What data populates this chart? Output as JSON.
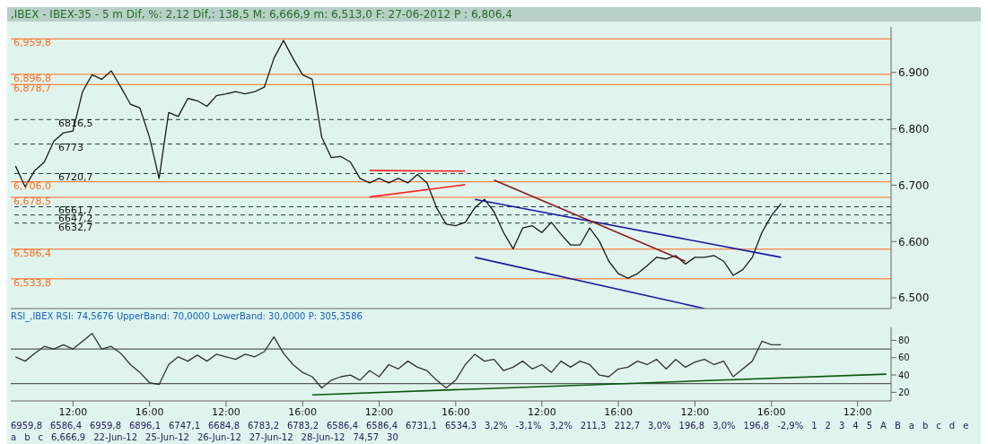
{
  "chart_data": [
    {
      "type": "line",
      "title": ",IBEX - IBEX-35 -  5 m Dif, %: 2,12 Dif,: 138,5 M: 6,666,9 m: 6,513,0 F: 27-06-2012 P : 6,806,4",
      "categories": [
        null,
        null,
        null,
        null,
        null,
        null,
        null,
        null,
        null,
        null,
        null,
        null,
        null,
        null,
        null,
        null,
        null,
        null,
        null,
        null,
        null,
        null,
        null,
        null,
        null,
        null,
        null,
        null,
        null,
        null,
        null,
        null,
        null,
        null,
        null,
        null,
        null,
        null,
        null,
        null,
        null,
        null,
        null,
        null,
        null,
        null,
        null,
        null,
        null,
        null,
        null,
        null,
        null,
        null,
        null,
        null,
        null,
        null,
        null,
        null,
        null,
        null,
        null,
        null,
        null,
        null,
        null,
        null,
        null,
        null,
        null,
        null,
        null,
        null,
        null,
        null,
        null,
        null,
        null,
        null,
        null,
        null,
        null,
        null,
        null,
        null,
        null,
        null,
        null,
        null,
        null,
        null
      ],
      "series": [
        {
          "color": "#1a1a1a",
          "values": [
            6734,
            6697,
            6726,
            6741,
            6778,
            6793,
            6796,
            6866,
            6896,
            6888,
            6903,
            6874,
            6844,
            6837,
            6785,
            6712,
            6829,
            6822,
            6854,
            6850,
            6840,
            6859,
            6862,
            6866,
            6862,
            6866,
            6874,
            6925,
            6957,
            6925,
            6896,
            6888,
            6785,
            6749,
            6751,
            6741,
            6712,
            6704,
            6712,
            6704,
            6712,
            6704,
            6719,
            6704,
            6660,
            6631,
            6628,
            6634,
            6660,
            6675,
            6653,
            6616,
            6587,
            6624,
            6628,
            6616,
            6634,
            6613,
            6594,
            6594,
            6624,
            6601,
            6565,
            6543,
            6535,
            6543,
            6557,
            6572,
            6569,
            6575,
            6560,
            6572,
            6572,
            6575,
            6565,
            6540,
            6550,
            6572,
            6616,
            6646,
            6667,
            null,
            null,
            null,
            null,
            null,
            null,
            null,
            null,
            null,
            null,
            null
          ]
        },
        {
          "type": "line",
          "color": "#1a1aa0",
          "values": [
            null,
            null,
            null,
            null,
            null,
            null,
            null,
            null,
            null,
            null,
            null,
            null,
            null,
            null,
            null,
            null,
            null,
            null,
            null,
            null,
            null,
            null,
            null,
            null,
            null,
            null,
            null,
            null,
            null,
            null,
            null,
            null,
            null,
            null,
            null,
            null,
            null,
            null,
            null,
            null,
            null,
            null,
            null,
            null,
            null,
            null,
            null,
            null,
            6675,
            null,
            null,
            null,
            null,
            null,
            null,
            null,
            null,
            null,
            null,
            null,
            null,
            null,
            null,
            null,
            null,
            null,
            null,
            null,
            null,
            null,
            null,
            null,
            null,
            null,
            null,
            null,
            null,
            null,
            null,
            null,
            6572,
            null,
            null,
            null,
            null,
            null,
            null,
            null,
            null,
            null,
            null,
            null
          ]
        },
        {
          "type": "line",
          "color": "#1a1aa0",
          "values": [
            null,
            null,
            null,
            null,
            null,
            null,
            null,
            null,
            null,
            null,
            null,
            null,
            null,
            null,
            null,
            null,
            null,
            null,
            null,
            null,
            null,
            null,
            null,
            null,
            null,
            null,
            null,
            null,
            null,
            null,
            null,
            null,
            null,
            null,
            null,
            null,
            null,
            null,
            null,
            null,
            null,
            null,
            null,
            null,
            null,
            null,
            null,
            null,
            6572,
            null,
            null,
            null,
            null,
            null,
            null,
            null,
            null,
            null,
            null,
            null,
            null,
            null,
            null,
            null,
            null,
            null,
            null,
            null,
            null,
            null,
            null,
            null,
            6481,
            null,
            null,
            null,
            null,
            null,
            null,
            null,
            null,
            null,
            null,
            null,
            null,
            null,
            null,
            null,
            null,
            null,
            null,
            null
          ]
        },
        {
          "type": "line",
          "color": "#8b1a1a",
          "values": [
            null,
            null,
            null,
            null,
            null,
            null,
            null,
            null,
            null,
            null,
            null,
            null,
            null,
            null,
            null,
            null,
            null,
            null,
            null,
            null,
            null,
            null,
            null,
            null,
            null,
            null,
            null,
            null,
            null,
            null,
            null,
            null,
            null,
            null,
            null,
            null,
            null,
            null,
            null,
            null,
            null,
            null,
            null,
            null,
            null,
            null,
            null,
            null,
            null,
            null,
            6709,
            null,
            null,
            null,
            null,
            null,
            null,
            null,
            null,
            null,
            null,
            null,
            null,
            null,
            null,
            null,
            null,
            null,
            null,
            null,
            6565,
            null,
            null,
            null,
            null,
            null,
            null,
            null,
            null,
            null,
            null,
            null,
            null,
            null,
            null,
            null,
            null,
            null,
            null,
            null,
            null,
            null
          ]
        },
        {
          "type": "line",
          "color": "#ff2020",
          "values": [
            null,
            null,
            null,
            null,
            null,
            null,
            null,
            null,
            null,
            null,
            null,
            null,
            null,
            null,
            null,
            null,
            null,
            null,
            null,
            null,
            null,
            null,
            null,
            null,
            null,
            null,
            null,
            null,
            null,
            null,
            null,
            null,
            null,
            null,
            null,
            null,
            null,
            6726,
            null,
            null,
            null,
            null,
            null,
            null,
            null,
            null,
            null,
            6725,
            null,
            null,
            null,
            null,
            null,
            null,
            null,
            null,
            null,
            null,
            null,
            null,
            null,
            null,
            null,
            null,
            null,
            null,
            null,
            null,
            null,
            null,
            null,
            null,
            null,
            null,
            null,
            null,
            null,
            null,
            null,
            null,
            null,
            null,
            null,
            null,
            null,
            null,
            null,
            null,
            null,
            null,
            null,
            null
          ]
        },
        {
          "type": "line",
          "color": "#ff2020",
          "values": [
            null,
            null,
            null,
            null,
            null,
            null,
            null,
            null,
            null,
            null,
            null,
            null,
            null,
            null,
            null,
            null,
            null,
            null,
            null,
            null,
            null,
            null,
            null,
            null,
            null,
            null,
            null,
            null,
            null,
            null,
            null,
            null,
            null,
            null,
            null,
            null,
            null,
            6679,
            null,
            null,
            null,
            null,
            null,
            null,
            null,
            null,
            null,
            6701,
            null,
            null,
            null,
            null,
            null,
            null,
            null,
            null,
            null,
            null,
            null,
            null,
            null,
            null,
            null,
            null,
            null,
            null,
            null,
            null,
            null,
            null,
            null,
            null,
            null,
            null,
            null,
            null,
            null,
            null,
            null,
            null,
            null,
            null,
            null,
            null,
            null,
            null,
            null,
            null,
            null,
            null,
            null,
            null
          ]
        }
      ],
      "ylim": [
        6481,
        6981
      ],
      "yticks": [
        {
          "value": 6500,
          "label": "6.500"
        },
        {
          "value": 6600,
          "label": "6.600"
        },
        {
          "value": 6700,
          "label": "6.700"
        },
        {
          "value": 6800,
          "label": "6.800"
        },
        {
          "value": 6900,
          "label": "6.900"
        }
      ],
      "tick_labels": "y",
      "marker": "none",
      "legend": false,
      "grid": false,
      "ref_lines": [
        {
          "axis": "y",
          "value": 6959.8,
          "label": "6,959,8",
          "color": "#ff6a1a"
        },
        {
          "axis": "y",
          "value": 6896.8,
          "label": "6,896,8",
          "color": "#ff6a1a"
        },
        {
          "axis": "y",
          "value": 6878.7,
          "label": "6,878,7",
          "color": "#ff6a1a"
        },
        {
          "axis": "y",
          "value": 6706,
          "label": "6,706,0",
          "color": "#ff6a1a"
        },
        {
          "axis": "y",
          "value": 6678.5,
          "label": "6,678,5",
          "color": "#ff6a1a"
        },
        {
          "axis": "y",
          "value": 6586.4,
          "label": "6,586,4",
          "color": "#ff6a1a"
        },
        {
          "axis": "y",
          "value": 6533.8,
          "label": "6,533,8",
          "color": "#ff6a1a"
        },
        {
          "axis": "y",
          "value": 6816.5,
          "label": "6816,5",
          "color": "#1a4040",
          "line_style": "dashed"
        },
        {
          "axis": "y",
          "value": 6773,
          "label": "6773",
          "color": "#1a4040",
          "line_style": "dashed"
        },
        {
          "axis": "y",
          "value": 6720.7,
          "label": "6720,7",
          "color": "#1a4040",
          "line_style": "dashed"
        },
        {
          "axis": "y",
          "value": 6661.7,
          "label": "6661,7",
          "color": "#1a4040",
          "line_style": "dashed"
        },
        {
          "axis": "y",
          "value": 6647.2,
          "label": "6647,2",
          "color": "#1a4040",
          "line_style": "dashed"
        },
        {
          "axis": "y",
          "value": 6632.7,
          "label": "6632,7",
          "color": "#1a4040",
          "line_style": "dashed"
        }
      ],
      "annotations": [
        "6959,8",
        "6586,4",
        "6959,8",
        "6896,1",
        "6747,1",
        "6684,8",
        "6783,2",
        "6783,2",
        "6586,4",
        "6586,4",
        "6731,1",
        "6534,3",
        "3,2%",
        "-3,1%",
        "3,2%",
        "211,3",
        "212,7",
        "3,0%",
        "196,8",
        "3,0%",
        "196,8",
        "-2,9%",
        "1",
        "2",
        "3",
        "4",
        "5",
        "A",
        "B",
        "a",
        "b",
        "c",
        "d",
        "e",
        "a",
        "b",
        "c",
        "6,666,9"
      ]
    },
    {
      "type": "line",
      "title": "RSI_,IBEX RSI: 74,5676 UpperBand: 70,0000 LowerBand: 30,0000 P: 305,3586",
      "categories": [
        null,
        null,
        null,
        null,
        null,
        null,
        "12:00",
        null,
        null,
        null,
        null,
        null,
        null,
        null,
        "16:00",
        null,
        null,
        null,
        null,
        null,
        null,
        null,
        "12:00",
        null,
        null,
        null,
        null,
        null,
        null,
        null,
        "16:00",
        null,
        null,
        null,
        null,
        null,
        null,
        null,
        "12:00",
        null,
        null,
        null,
        null,
        null,
        null,
        null,
        "16:00",
        null,
        null,
        null,
        null,
        null,
        null,
        null,
        null,
        "12:00",
        null,
        null,
        null,
        null,
        null,
        null,
        null,
        "16:00",
        null,
        null,
        null,
        null,
        null,
        null,
        null,
        "12:00",
        null,
        null,
        null,
        null,
        null,
        null,
        null,
        "16:00",
        null,
        null,
        null,
        null,
        null,
        null,
        null,
        null,
        "12:00",
        null,
        null,
        null
      ],
      "series": [
        {
          "color": "#333333",
          "values": [
            61,
            56,
            65,
            73,
            70,
            75,
            70,
            79,
            88,
            70,
            73,
            65,
            52,
            43,
            31,
            29,
            52,
            61,
            56,
            63,
            56,
            64,
            61,
            58,
            64,
            61,
            67,
            84,
            65,
            52,
            43,
            38,
            25,
            34,
            38,
            40,
            34,
            45,
            38,
            52,
            47,
            56,
            49,
            45,
            34,
            25,
            34,
            52,
            64,
            56,
            58,
            45,
            49,
            56,
            47,
            52,
            43,
            56,
            49,
            56,
            52,
            40,
            38,
            47,
            49,
            56,
            52,
            58,
            47,
            58,
            49,
            55,
            58,
            52,
            56,
            38,
            47,
            56,
            79,
            75,
            75,
            null,
            null,
            null,
            null,
            null,
            null,
            null,
            null,
            null,
            null,
            null
          ]
        },
        {
          "type": "line",
          "color": "#0a5a0a",
          "values": [
            null,
            null,
            null,
            null,
            null,
            null,
            null,
            null,
            null,
            null,
            null,
            null,
            null,
            null,
            null,
            null,
            null,
            null,
            null,
            null,
            null,
            null,
            null,
            null,
            null,
            null,
            null,
            null,
            null,
            null,
            null,
            17,
            null,
            null,
            null,
            null,
            null,
            null,
            null,
            null,
            null,
            null,
            null,
            null,
            null,
            null,
            null,
            null,
            null,
            null,
            null,
            null,
            null,
            null,
            null,
            null,
            null,
            null,
            null,
            null,
            null,
            null,
            null,
            null,
            null,
            null,
            null,
            null,
            null,
            null,
            null,
            null,
            null,
            null,
            null,
            null,
            null,
            null,
            null,
            null,
            null,
            null,
            null,
            null,
            null,
            null,
            null,
            null,
            null,
            null,
            null,
            41
          ]
        }
      ],
      "ylim": [
        10,
        95
      ],
      "yticks": [
        20,
        40,
        60,
        80
      ],
      "marker": "none",
      "legend": false,
      "grid": false,
      "ref_lines": [
        {
          "axis": "y",
          "value": 70,
          "color": "#333333"
        },
        {
          "axis": "y",
          "value": 30,
          "color": "#333333"
        }
      ],
      "annotations": [
        "22-Jun-12",
        "25-Jun-12",
        "26-Jun-12",
        "27-Jun-12",
        "28-Jun-12",
        "74,57",
        "30"
      ]
    }
  ]
}
